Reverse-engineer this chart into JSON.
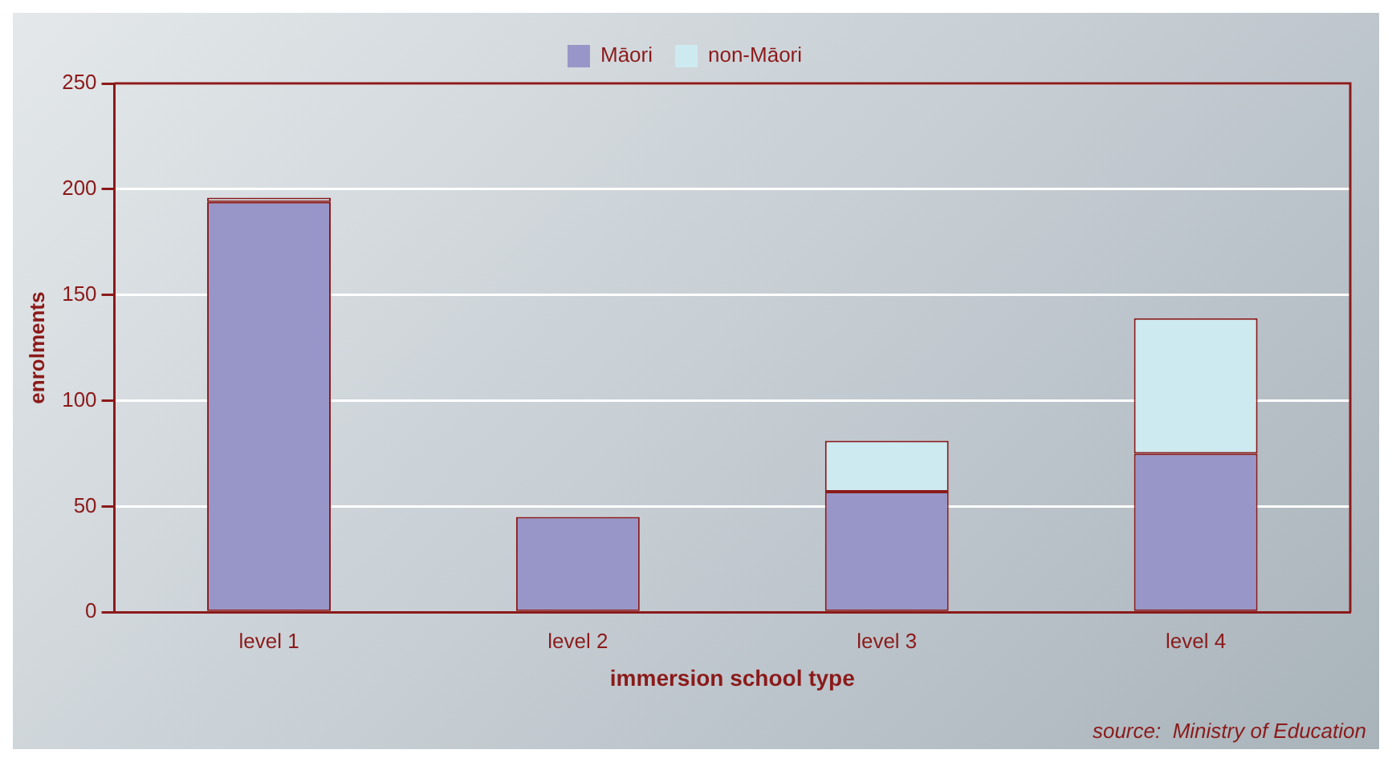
{
  "chart_data": {
    "type": "bar",
    "xlabel": "immersion school type",
    "ylabel": "enrolments",
    "categories": [
      "level 1",
      "level 2",
      "level 3",
      "level 4"
    ],
    "series": [
      {
        "name": "Māori",
        "color": "#9896c8",
        "values": [
          194,
          45,
          57,
          75
        ]
      },
      {
        "name": "non-Māori",
        "color": "#cdeaf0",
        "values": [
          2,
          0,
          24,
          64
        ]
      }
    ],
    "stacked": true,
    "ylim": [
      0,
      250
    ],
    "yticks": [
      0,
      50,
      100,
      150,
      200,
      250
    ],
    "grid": "y",
    "legend": "top",
    "annotations": [
      "source:  Ministry of Education"
    ]
  }
}
